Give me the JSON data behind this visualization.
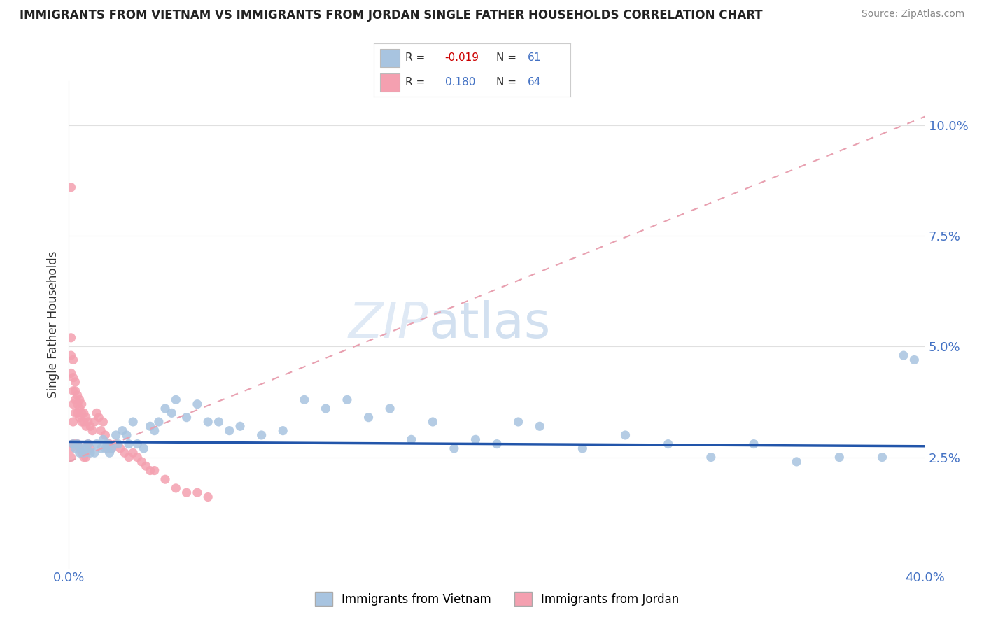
{
  "title": "IMMIGRANTS FROM VIETNAM VS IMMIGRANTS FROM JORDAN SINGLE FATHER HOUSEHOLDS CORRELATION CHART",
  "source": "Source: ZipAtlas.com",
  "ylabel": "Single Father Households",
  "xlim": [
    0.0,
    0.4
  ],
  "ylim": [
    0.0,
    0.11
  ],
  "yticks": [
    0.025,
    0.05,
    0.075,
    0.1
  ],
  "ytick_labels": [
    "2.5%",
    "5.0%",
    "7.5%",
    "10.0%"
  ],
  "xticks": [
    0.0,
    0.4
  ],
  "xtick_labels": [
    "0.0%",
    "40.0%"
  ],
  "vietnam_color": "#a8c4e0",
  "jordan_color": "#f4a0b0",
  "vietnam_R": -0.019,
  "vietnam_N": 61,
  "jordan_R": 0.18,
  "jordan_N": 64,
  "trend_vietnam_color": "#2255aa",
  "trend_jordan_color": "#e8a0b0",
  "watermark_zip": "ZIP",
  "watermark_atlas": "atlas",
  "background_color": "#ffffff",
  "grid_color": "#e0e0e0",
  "vietnam_scatter_x": [
    0.002,
    0.003,
    0.004,
    0.005,
    0.006,
    0.007,
    0.008,
    0.009,
    0.01,
    0.012,
    0.013,
    0.015,
    0.016,
    0.017,
    0.018,
    0.019,
    0.02,
    0.022,
    0.023,
    0.025,
    0.027,
    0.028,
    0.03,
    0.032,
    0.035,
    0.038,
    0.04,
    0.042,
    0.045,
    0.048,
    0.05,
    0.055,
    0.06,
    0.065,
    0.07,
    0.075,
    0.08,
    0.09,
    0.1,
    0.11,
    0.12,
    0.13,
    0.14,
    0.15,
    0.16,
    0.17,
    0.18,
    0.19,
    0.2,
    0.21,
    0.22,
    0.24,
    0.26,
    0.28,
    0.3,
    0.32,
    0.34,
    0.36,
    0.38,
    0.39,
    0.395
  ],
  "vietnam_scatter_y": [
    0.028,
    0.027,
    0.028,
    0.026,
    0.027,
    0.026,
    0.027,
    0.028,
    0.026,
    0.026,
    0.028,
    0.027,
    0.029,
    0.027,
    0.028,
    0.026,
    0.027,
    0.03,
    0.028,
    0.031,
    0.03,
    0.028,
    0.033,
    0.028,
    0.027,
    0.032,
    0.031,
    0.033,
    0.036,
    0.035,
    0.038,
    0.034,
    0.037,
    0.033,
    0.033,
    0.031,
    0.032,
    0.03,
    0.031,
    0.038,
    0.036,
    0.038,
    0.034,
    0.036,
    0.029,
    0.033,
    0.027,
    0.029,
    0.028,
    0.033,
    0.032,
    0.027,
    0.03,
    0.028,
    0.025,
    0.028,
    0.024,
    0.025,
    0.025,
    0.048,
    0.047
  ],
  "jordan_scatter_x": [
    0.001,
    0.001,
    0.001,
    0.001,
    0.001,
    0.001,
    0.002,
    0.002,
    0.002,
    0.002,
    0.002,
    0.002,
    0.003,
    0.003,
    0.003,
    0.003,
    0.003,
    0.004,
    0.004,
    0.004,
    0.004,
    0.005,
    0.005,
    0.005,
    0.005,
    0.006,
    0.006,
    0.006,
    0.006,
    0.007,
    0.007,
    0.007,
    0.008,
    0.008,
    0.008,
    0.009,
    0.009,
    0.01,
    0.01,
    0.011,
    0.012,
    0.013,
    0.014,
    0.015,
    0.016,
    0.017,
    0.018,
    0.019,
    0.02,
    0.022,
    0.024,
    0.026,
    0.028,
    0.03,
    0.032,
    0.034,
    0.036,
    0.038,
    0.04,
    0.045,
    0.05,
    0.055,
    0.06,
    0.065
  ],
  "jordan_scatter_y": [
    0.086,
    0.052,
    0.048,
    0.044,
    0.027,
    0.025,
    0.047,
    0.043,
    0.04,
    0.037,
    0.033,
    0.028,
    0.042,
    0.04,
    0.038,
    0.035,
    0.028,
    0.039,
    0.037,
    0.035,
    0.028,
    0.038,
    0.036,
    0.034,
    0.027,
    0.037,
    0.035,
    0.033,
    0.026,
    0.035,
    0.033,
    0.025,
    0.034,
    0.032,
    0.025,
    0.033,
    0.028,
    0.032,
    0.027,
    0.031,
    0.033,
    0.035,
    0.034,
    0.031,
    0.033,
    0.03,
    0.027,
    0.028,
    0.027,
    0.028,
    0.027,
    0.026,
    0.025,
    0.026,
    0.025,
    0.024,
    0.023,
    0.022,
    0.022,
    0.02,
    0.018,
    0.017,
    0.017,
    0.016
  ],
  "jordan_trend_x0": 0.0,
  "jordan_trend_y0": 0.024,
  "jordan_trend_x1": 0.4,
  "jordan_trend_y1": 0.102,
  "vietnam_trend_x0": 0.0,
  "vietnam_trend_y0": 0.0285,
  "vietnam_trend_x1": 0.4,
  "vietnam_trend_y1": 0.0275
}
